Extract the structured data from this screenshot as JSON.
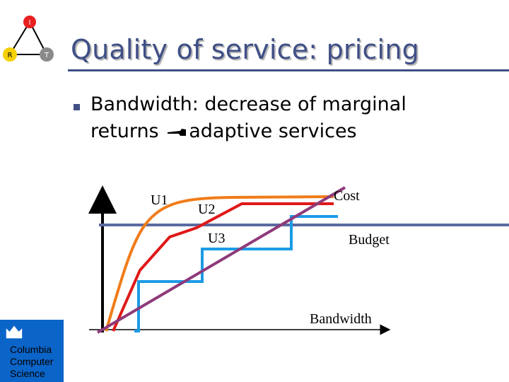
{
  "slide": {
    "title": "Quality of service: pricing",
    "bullet": {
      "line1": "Bandwidth: decrease of marginal",
      "line2_before": "returns",
      "line2_after": "adaptive services"
    }
  },
  "diagram": {
    "labels": {
      "u1": "U1",
      "u2": "U2",
      "u3": "U3",
      "cost": "Cost",
      "budget": "Budget",
      "bandwidth": "Bandwidth"
    },
    "colors": {
      "u1": "#f07c1a",
      "u2": "#e01818",
      "u3": "#1b9be6",
      "cost": "#8e3a7a",
      "budget": "#5b6aa0",
      "axes": "#000000"
    }
  },
  "logos": {
    "rit": {
      "nodes": [
        "I",
        "R",
        "T"
      ],
      "colors": [
        "#e82020",
        "#f5d000",
        "#8a8a8a"
      ]
    },
    "columbia": {
      "lines": [
        "Columbia",
        "Computer",
        "Science"
      ],
      "icon": "crown-icon",
      "color": "#0b64c8"
    }
  }
}
